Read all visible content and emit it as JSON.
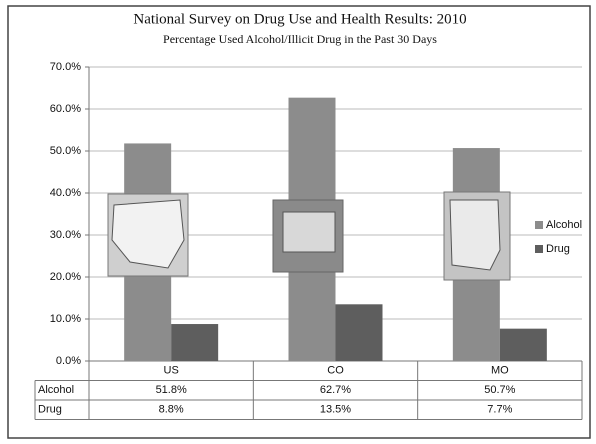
{
  "chart_data": {
    "type": "bar",
    "title": "National Survey on Drug Use and Health Results: 2010",
    "subtitle": "Percentage Used Alcohol/Illicit Drug in the Past 30 Days",
    "categories": [
      "US",
      "CO",
      "MO"
    ],
    "series": [
      {
        "name": "Alcohol",
        "color": "#8c8c8c",
        "values": [
          51.8,
          62.7,
          50.7
        ],
        "value_labels": [
          "51.8%",
          "62.7%",
          "50.7%"
        ]
      },
      {
        "name": "Drug",
        "color": "#5e5e5e",
        "values": [
          8.8,
          13.5,
          7.7
        ],
        "value_labels": [
          "8.8%",
          "13.5%",
          "7.7%"
        ]
      }
    ],
    "ylim": [
      0,
      70
    ],
    "yticks": [
      {
        "value": 0,
        "label": "0.0%"
      },
      {
        "value": 10,
        "label": "10.0%"
      },
      {
        "value": 20,
        "label": "20.0%"
      },
      {
        "value": 30,
        "label": "30.0%"
      },
      {
        "value": 40,
        "label": "40.0%"
      },
      {
        "value": 50,
        "label": "50.0%"
      },
      {
        "value": 60,
        "label": "60.0%"
      },
      {
        "value": 70,
        "label": "70.0%"
      }
    ],
    "grid": true,
    "legend": "right",
    "data_table": true
  }
}
